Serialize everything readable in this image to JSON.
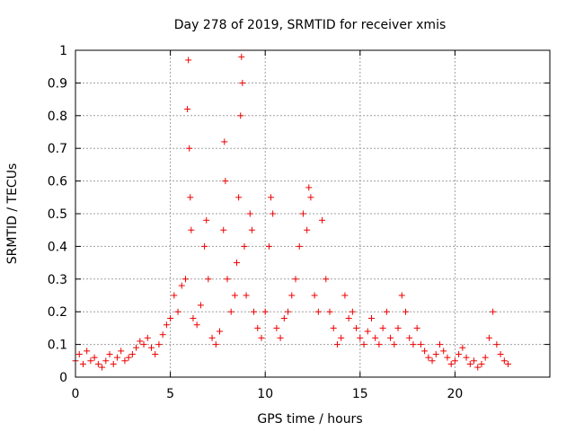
{
  "chart_data": {
    "type": "scatter",
    "title": "Day 278 of 2019, SRMTID for receiver xmis",
    "xlabel": "GPS time / hours",
    "ylabel": "SRMTID / TECUs",
    "xlim": [
      0,
      25
    ],
    "ylim": [
      0,
      1
    ],
    "xticks": [
      "0",
      "5",
      "10",
      "15",
      "20"
    ],
    "xtick_values": [
      0,
      5,
      10,
      15,
      20
    ],
    "yticks": [
      "0",
      "0.1",
      "0.2",
      "0.3",
      "0.4",
      "0.5",
      "0.6",
      "0.7",
      "0.8",
      "0.9",
      "1"
    ],
    "ytick_values": [
      0,
      0.1,
      0.2,
      0.3,
      0.4,
      0.5,
      0.6,
      0.7,
      0.8,
      0.9,
      1
    ],
    "grid": true,
    "marker": "plus",
    "series_color": "#ee0000",
    "series": [
      {
        "name": "SRMTID",
        "points": [
          [
            0.0,
            0.05
          ],
          [
            0.2,
            0.07
          ],
          [
            0.4,
            0.04
          ],
          [
            0.6,
            0.08
          ],
          [
            0.8,
            0.05
          ],
          [
            1.0,
            0.06
          ],
          [
            1.2,
            0.04
          ],
          [
            1.4,
            0.03
          ],
          [
            1.6,
            0.05
          ],
          [
            1.8,
            0.07
          ],
          [
            2.0,
            0.04
          ],
          [
            2.2,
            0.06
          ],
          [
            2.4,
            0.08
          ],
          [
            2.6,
            0.05
          ],
          [
            2.8,
            0.06
          ],
          [
            3.0,
            0.07
          ],
          [
            3.2,
            0.09
          ],
          [
            3.4,
            0.11
          ],
          [
            3.6,
            0.1
          ],
          [
            3.8,
            0.12
          ],
          [
            4.0,
            0.09
          ],
          [
            4.2,
            0.07
          ],
          [
            4.4,
            0.1
          ],
          [
            4.6,
            0.13
          ],
          [
            4.8,
            0.16
          ],
          [
            5.0,
            0.18
          ],
          [
            5.2,
            0.25
          ],
          [
            5.4,
            0.2
          ],
          [
            5.6,
            0.28
          ],
          [
            5.8,
            0.3
          ],
          [
            5.9,
            0.82
          ],
          [
            5.95,
            0.97
          ],
          [
            6.0,
            0.7
          ],
          [
            6.05,
            0.55
          ],
          [
            6.1,
            0.45
          ],
          [
            6.2,
            0.18
          ],
          [
            6.4,
            0.16
          ],
          [
            6.6,
            0.22
          ],
          [
            6.8,
            0.4
          ],
          [
            6.9,
            0.48
          ],
          [
            7.0,
            0.3
          ],
          [
            7.2,
            0.12
          ],
          [
            7.4,
            0.1
          ],
          [
            7.6,
            0.14
          ],
          [
            7.8,
            0.45
          ],
          [
            7.85,
            0.72
          ],
          [
            7.9,
            0.6
          ],
          [
            8.0,
            0.3
          ],
          [
            8.2,
            0.2
          ],
          [
            8.4,
            0.25
          ],
          [
            8.5,
            0.35
          ],
          [
            8.6,
            0.55
          ],
          [
            8.7,
            0.8
          ],
          [
            8.75,
            0.98
          ],
          [
            8.8,
            0.9
          ],
          [
            8.9,
            0.4
          ],
          [
            9.0,
            0.25
          ],
          [
            9.2,
            0.5
          ],
          [
            9.3,
            0.45
          ],
          [
            9.4,
            0.2
          ],
          [
            9.6,
            0.15
          ],
          [
            9.8,
            0.12
          ],
          [
            10.0,
            0.2
          ],
          [
            10.2,
            0.4
          ],
          [
            10.3,
            0.55
          ],
          [
            10.4,
            0.5
          ],
          [
            10.6,
            0.15
          ],
          [
            10.8,
            0.12
          ],
          [
            11.0,
            0.18
          ],
          [
            11.2,
            0.2
          ],
          [
            11.4,
            0.25
          ],
          [
            11.6,
            0.3
          ],
          [
            11.8,
            0.4
          ],
          [
            12.0,
            0.5
          ],
          [
            12.2,
            0.45
          ],
          [
            12.3,
            0.58
          ],
          [
            12.4,
            0.55
          ],
          [
            12.6,
            0.25
          ],
          [
            12.8,
            0.2
          ],
          [
            13.0,
            0.48
          ],
          [
            13.2,
            0.3
          ],
          [
            13.4,
            0.2
          ],
          [
            13.6,
            0.15
          ],
          [
            13.8,
            0.1
          ],
          [
            14.0,
            0.12
          ],
          [
            14.2,
            0.25
          ],
          [
            14.4,
            0.18
          ],
          [
            14.6,
            0.2
          ],
          [
            14.8,
            0.15
          ],
          [
            15.0,
            0.12
          ],
          [
            15.2,
            0.1
          ],
          [
            15.4,
            0.14
          ],
          [
            15.6,
            0.18
          ],
          [
            15.8,
            0.12
          ],
          [
            16.0,
            0.1
          ],
          [
            16.2,
            0.15
          ],
          [
            16.4,
            0.2
          ],
          [
            16.6,
            0.12
          ],
          [
            16.8,
            0.1
          ],
          [
            17.0,
            0.15
          ],
          [
            17.2,
            0.25
          ],
          [
            17.4,
            0.2
          ],
          [
            17.6,
            0.12
          ],
          [
            17.8,
            0.1
          ],
          [
            18.0,
            0.15
          ],
          [
            18.2,
            0.1
          ],
          [
            18.4,
            0.08
          ],
          [
            18.6,
            0.06
          ],
          [
            18.8,
            0.05
          ],
          [
            19.0,
            0.07
          ],
          [
            19.2,
            0.1
          ],
          [
            19.4,
            0.08
          ],
          [
            19.6,
            0.06
          ],
          [
            19.8,
            0.04
          ],
          [
            20.0,
            0.05
          ],
          [
            20.2,
            0.07
          ],
          [
            20.4,
            0.09
          ],
          [
            20.6,
            0.06
          ],
          [
            20.8,
            0.04
          ],
          [
            21.0,
            0.05
          ],
          [
            21.2,
            0.03
          ],
          [
            21.4,
            0.04
          ],
          [
            21.6,
            0.06
          ],
          [
            21.8,
            0.12
          ],
          [
            22.0,
            0.2
          ],
          [
            22.2,
            0.1
          ],
          [
            22.4,
            0.07
          ],
          [
            22.6,
            0.05
          ],
          [
            22.8,
            0.04
          ]
        ]
      }
    ]
  }
}
